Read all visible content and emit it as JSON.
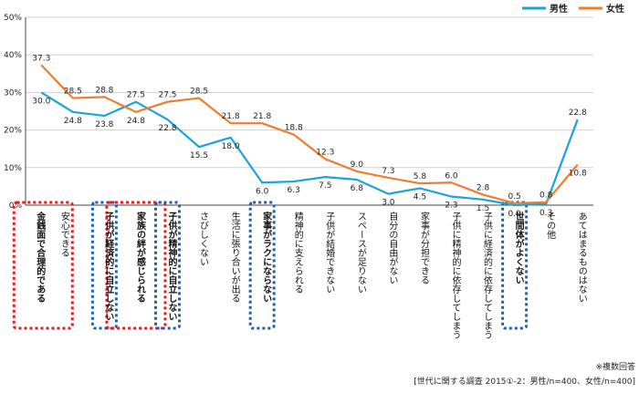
{
  "chart_data": {
    "type": "line",
    "ylim": [
      0,
      50
    ],
    "yticks": [
      "0%",
      "10%",
      "20%",
      "30%",
      "40%",
      "50%"
    ],
    "grid": true,
    "legend_position": "top-right",
    "categories": [
      "金銭面で合理的である",
      "安心できる",
      "子供が経済的に自立しない",
      "家族の絆が感じられる",
      "子供が精神的に自立しない",
      "さびしくない",
      "生活に張り合いが出る",
      "家事がラクにならない",
      "精神的に支えられる",
      "子供が結婚できない",
      "スペースが足りない",
      "自分の自由がない",
      "家事が分担できる",
      "子供に精神的に依存してしまう",
      "子供に経済的に依存してしまう",
      "世間体がよくない",
      "その他",
      "あてはまるものはない"
    ],
    "series": [
      {
        "name": "男性",
        "color": "#1aa3dc",
        "values": [
          30.0,
          24.8,
          23.8,
          27.5,
          22.8,
          15.5,
          18.0,
          6.0,
          6.3,
          7.5,
          6.8,
          3.0,
          4.5,
          2.3,
          1.5,
          0.0,
          0.3,
          22.8
        ],
        "labels": [
          "30.0",
          "24.8",
          "23.8",
          "27.5",
          "22.8",
          "15.5",
          "18.0",
          "6.0",
          "6.3",
          "7.5",
          "6.8",
          "3.0",
          "4.5",
          "2.3",
          "1.5",
          "0.0",
          "0.3",
          "22.8"
        ]
      },
      {
        "name": "女性",
        "color": "#ee7d2f",
        "values": [
          37.3,
          28.5,
          28.8,
          24.8,
          27.5,
          28.5,
          21.8,
          21.8,
          18.8,
          12.3,
          9.0,
          7.3,
          5.8,
          6.0,
          2.8,
          0.5,
          0.8,
          10.8
        ],
        "labels": [
          "37.3",
          "28.5",
          "28.8",
          "24.8",
          "27.5",
          "28.5",
          "21.8",
          "21.8",
          "18.8",
          "12.3",
          "9.0",
          "7.3",
          "5.8",
          "6.0",
          "2.8",
          "0.5",
          "0.8",
          "10.8"
        ]
      }
    ],
    "highlights": [
      {
        "index": 0,
        "style": "red",
        "color": "#e02020"
      },
      {
        "index": 2,
        "style": "blue",
        "color": "#1f5fae"
      },
      {
        "index": 3,
        "style": "red",
        "color": "#e02020"
      },
      {
        "index": 4,
        "style": "blue",
        "color": "#1f5fae"
      },
      {
        "index": 7,
        "style": "blue",
        "color": "#1f5fae"
      },
      {
        "index": 15,
        "style": "blue",
        "color": "#1f5fae"
      }
    ],
    "notes": [
      "※複数回答",
      "[世代に関する調査 2015①-2：男性/n=400、女性/n=400]"
    ]
  }
}
